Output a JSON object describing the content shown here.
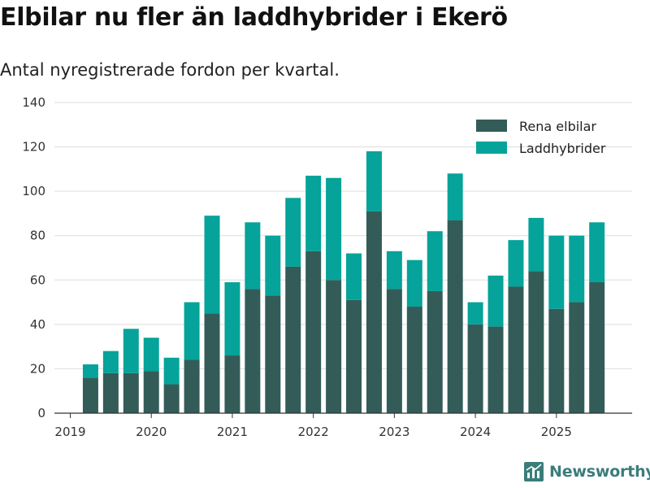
{
  "title": "Elbilar nu fler än laddhybrider i Ekerö",
  "subtitle": "Antal nyregistrerade fordon per kvartal.",
  "brand": {
    "name": "Newsworthy",
    "icon": "newsworthy-logo-icon"
  },
  "colors": {
    "elbilar": "#335c58",
    "laddhybrider": "#05a399",
    "grid": "#dddddd",
    "axis": "#333333",
    "brand": "#3a7d7b"
  },
  "chart_data": {
    "type": "bar",
    "stacked": true,
    "xlabel": "",
    "ylabel": "",
    "ylim": [
      0,
      140
    ],
    "yticks": [
      0,
      20,
      40,
      60,
      80,
      100,
      120,
      140
    ],
    "xticks": [
      {
        "label": "2019",
        "pos": 0
      },
      {
        "label": "2020",
        "pos": 4
      },
      {
        "label": "2021",
        "pos": 8
      },
      {
        "label": "2022",
        "pos": 12
      },
      {
        "label": "2023",
        "pos": 16
      },
      {
        "label": "2024",
        "pos": 20
      },
      {
        "label": "2025",
        "pos": 24
      }
    ],
    "x_start": 1,
    "legend": "top-right",
    "series": [
      {
        "name": "Rena elbilar",
        "color": "#335c58",
        "values": [
          16,
          18,
          18,
          19,
          13,
          24,
          45,
          26,
          56,
          53,
          66,
          73,
          60,
          51,
          91,
          56,
          48,
          55,
          87,
          40,
          39,
          57,
          64,
          47,
          50,
          59
        ]
      },
      {
        "name": "Laddhybrider",
        "color": "#05a399",
        "values": [
          6,
          10,
          20,
          15,
          12,
          26,
          44,
          33,
          30,
          27,
          31,
          34,
          46,
          21,
          27,
          17,
          21,
          27,
          21,
          10,
          23,
          21,
          24,
          33,
          30,
          27
        ]
      }
    ]
  }
}
